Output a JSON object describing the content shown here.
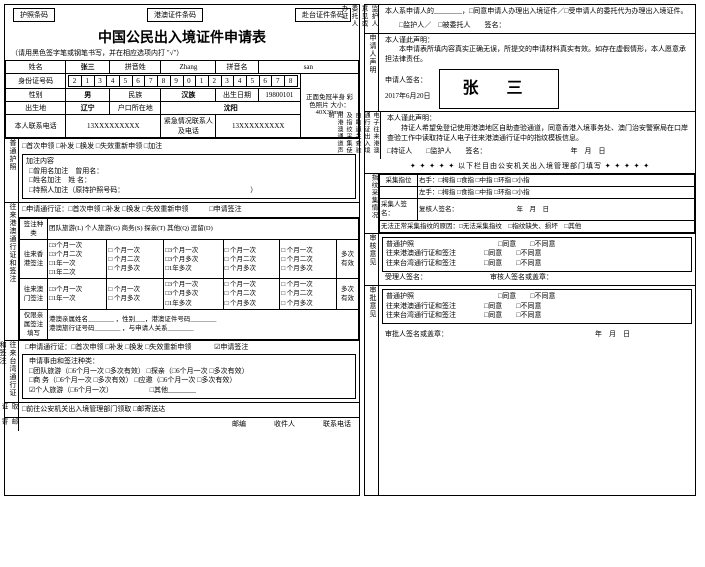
{
  "barcodes": {
    "passport": "护照条码",
    "hk_macao": "港澳证件条码",
    "taiwan": "赴台证件条码"
  },
  "title": "中国公民出入境证件申请表",
  "subtitle": "（请用黑色签字笔或钢笔书写，并在相应选项内打 \"√\"）",
  "basic": {
    "name_label": "姓名",
    "name": "张三",
    "pinyin_surname_label": "拼音姓",
    "pinyin_surname": "Zhang",
    "pinyin_given_label": "拼音名",
    "pinyin_given": "san",
    "id_label": "身份证号码",
    "id_digits": [
      "2",
      "1",
      "3",
      "4",
      "5",
      "6",
      "7",
      "8",
      "9",
      "0",
      "1",
      "2",
      "3",
      "4",
      "5",
      "6",
      "7",
      "8"
    ],
    "sex_label": "性别",
    "sex": "男",
    "ethnic_label": "民族",
    "ethnic": "汉族",
    "dob_label": "出生日期",
    "dob": "19800101",
    "photo_note": "正面免冠半身\n彩色照片\n大小：40X30mm",
    "birthplace_label": "出生地",
    "birthplace": "辽宁",
    "hukou_label": "户口所在地",
    "hukou": "沈阳",
    "phone_label": "本人联系电话",
    "phone": "13XXXXXXXXX",
    "emergency_label": "紧急情况联系人及电话",
    "emergency": "13XXXXXXXXX"
  },
  "passport": {
    "side": "普通护照",
    "apply_type": "□首次申领  □补发  □换发  □失效重新申领  □加注",
    "add_header": "加注内容",
    "add1": "□曾用名加注 曾用名：",
    "add2": "□姓名加注 姓 名：",
    "add3": "□持照人加注（原持护照号码：                  ）",
    "hk_apply": "□申请通行证：□首次申领  □补发  □换发  □失效重新申领   □申请签注",
    "visa_type_label": "签注种类",
    "visa_types": "团队旅游(L)  个人旅游(G)  商务(S)  探亲(T)  其他(Q)  逗留(D)",
    "hk_side": "往来港澳通行证和签注",
    "hk_row_label": "往来香港签注",
    "macao_row_label": "往来澳门签注",
    "freq_opts": [
      "□3个月一次",
      "□3个月二次",
      "□1年一次",
      "□1年二次"
    ],
    "freq_set2": [
      "□3个月一次",
      "□3个月多次",
      "□1年多次"
    ],
    "freq_set3": [
      "□3个月一次",
      "□3个月多次",
      "□1年多次"
    ],
    "stay_opts": [
      "□ 个月一次",
      "□ 个月二次",
      "□ 个月多次"
    ],
    "multi_label": "多次有效",
    "relative_label": "仅限亲属签注填写",
    "relative_content": "港澳亲属姓名________ ，性别___，港澳证件号码________\n港澳旅行证号码________ ，与申请人关系________",
    "tw_side": "往来台湾通行证和签注",
    "tw_apply": "□申请通行证：□首次申领 □补发 □换发 □失效重新申领    ☑申请签注",
    "tw_reason_label": "申请事由和签注种类：",
    "tw_opts": [
      "□团队旅游（□6个月一次 □多次有效）  □探亲（□6个月一次 □多次有效）",
      "□商  务（□6个月一次 □多次有效）  □应邀（□6个月一次 □多次有效）",
      "☑个人旅游（□6个月一次）       □其他________"
    ],
    "pickup_side": "取证方式",
    "pickup": "□前往公安机关出入境管理部门领取  □邮寄送达",
    "mail_side": "邮寄地址",
    "mail_labels": "邮编    收件人    联系电话"
  },
  "right": {
    "side1": "监护人意见或委托人办证",
    "r1_line1": "本人系申请人的________，□同意申请人办理出入境证件／□受申请人的委托代为办理出入境证件。",
    "r1_line2": "  □监护人／ □被委托人  签名：",
    "side2": "申请人声明",
    "r2_line1": "本人谨此声明：",
    "r2_line2": "  本申请表所填内容真实正确无误，所提交的申请材料真实有效。如存在虚假情形，本人愿意承担法律责任。",
    "r2_sig_label": "申请人签名：",
    "r2_date": "2017年6月20日",
    "r2_sig": "张  三",
    "side3": "电子往来港澳通行证出入境自助通关查验及指纹采集使用港澳通道声明",
    "r3_line1": "本人谨此声明：",
    "r3_line2": "  持证人希望免登记使用港澳地区自助查验通道，同意香港入境事务处、澳门治安警察局在口岸查验工作中读取持证人电子往来港澳通行证中的指纹模板信息。",
    "r3_foot": "□持证人  □监护人  签名：            年 月 日",
    "divider": "✦  ✦  ✦  ✦  ✦  以下栏目由公安机关出入境管理部门填写  ✦  ✦  ✦  ✦  ✦",
    "side4": "指纹采集情况",
    "fp_header1": "采集指位",
    "fp_opts_r": "右手：□拇指  □食指  □中指  □环指  □小指",
    "fp_opts_l": "左手：□拇指  □食指  □中指  □环指  □小指",
    "fp_row2_l": "采集人签名：",
    "fp_row2_r": "复核人签名：         年 月 日",
    "fp_row3": "无法正常采集指纹的原因：□无法采集指纹 □指纹缺失、损坏 □其他",
    "side5": "审核意见",
    "r5_block": "普通护照            □同意  □不同意\n往来港澳通行证和签注    □同意  □不同意\n往来台湾通行证和签注    □同意  □不同意",
    "r5_sig": "受理人签名：         审核人签名或盖章：",
    "side6": "审批意见",
    "r6_block": "普通护照            □同意  □不同意\n往来港澳通行证和签注    □同意  □不同意\n往来台湾通行证和签注    □同意  □不同意",
    "r6_sig": "审批人签名或盖章：                     年 月 日"
  }
}
